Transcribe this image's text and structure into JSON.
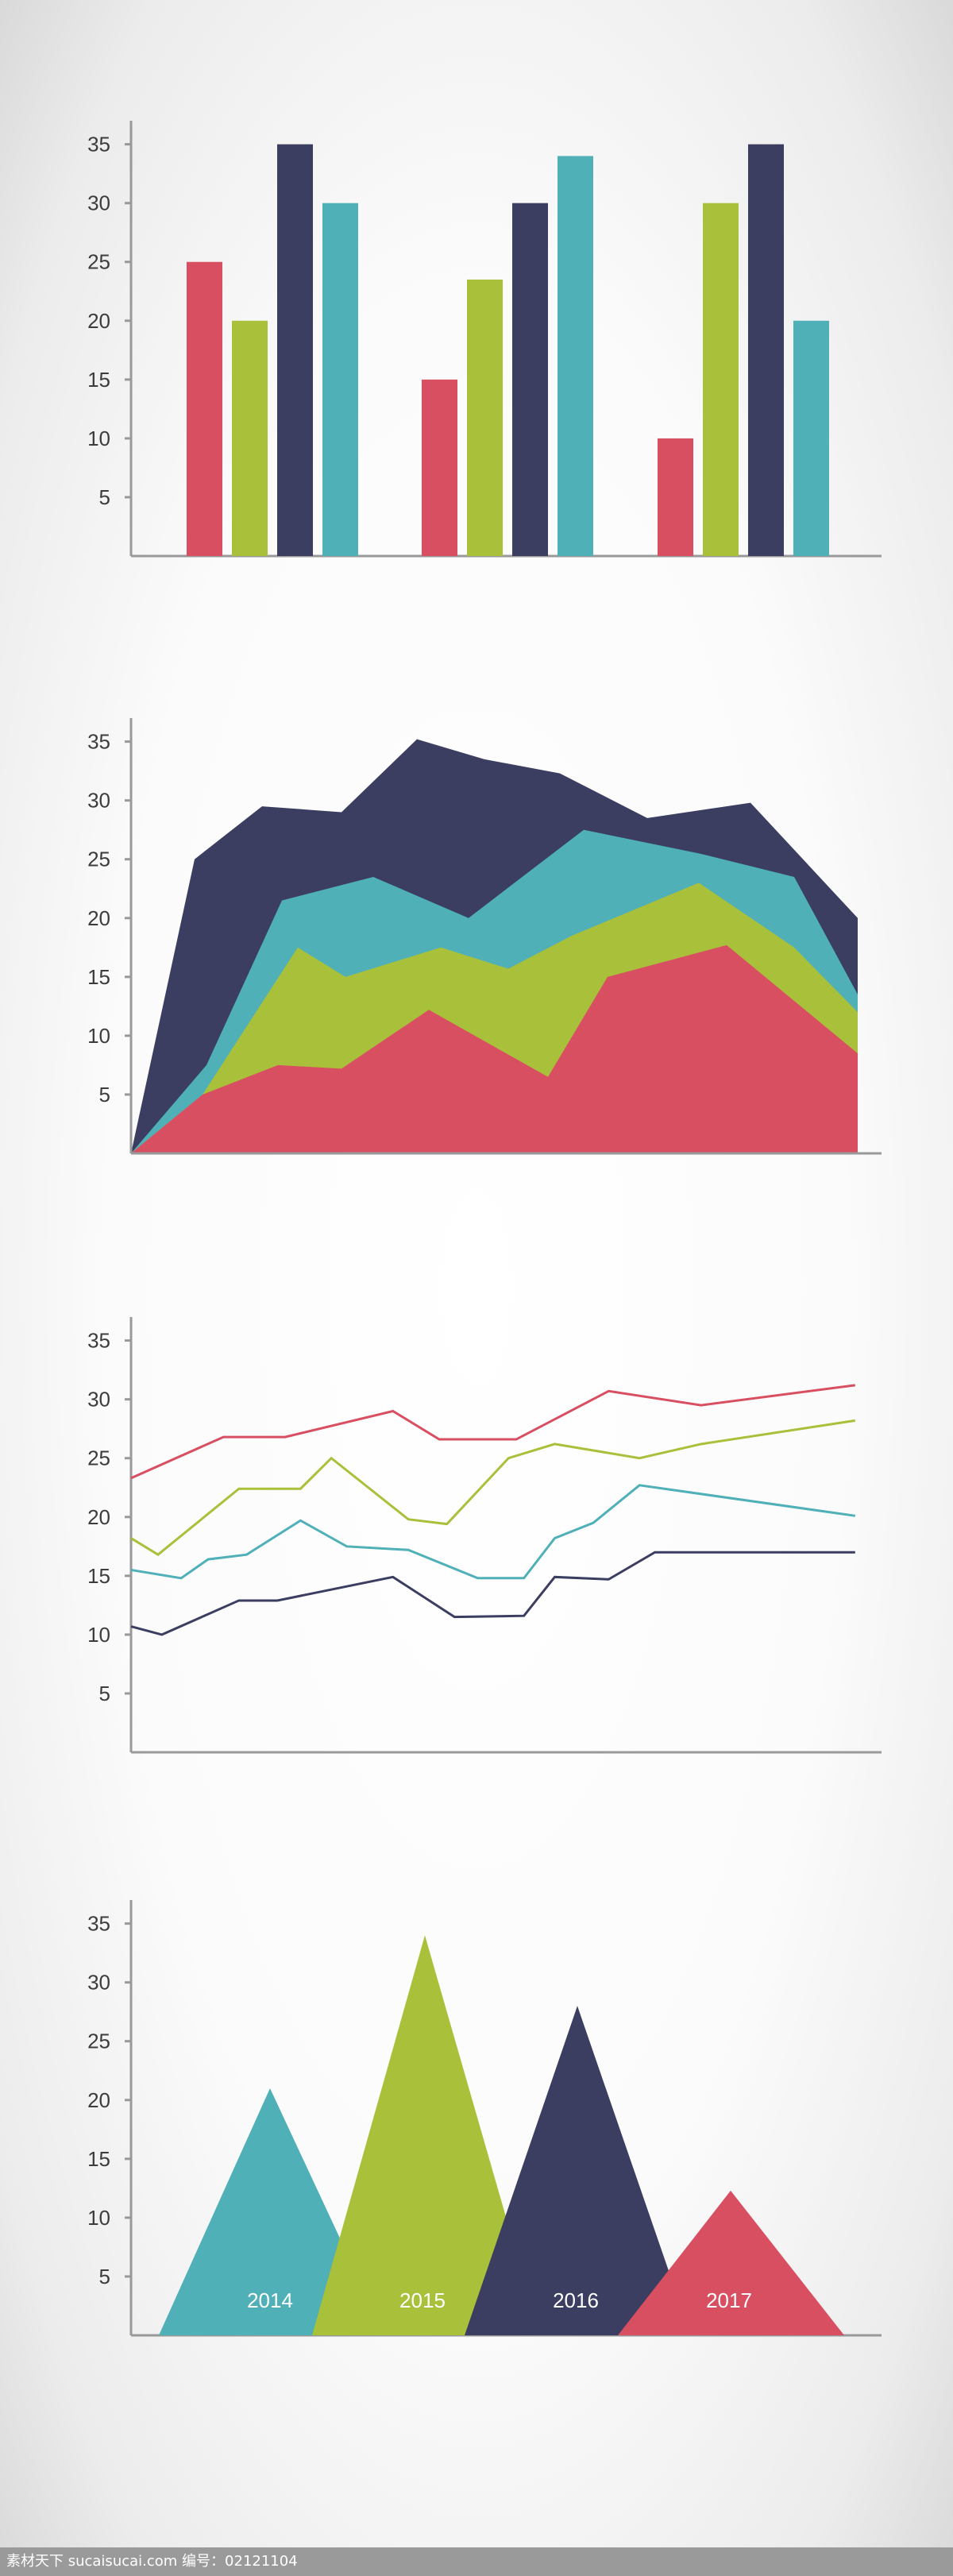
{
  "colors": {
    "red": "#d94f62",
    "green": "#a9c03a",
    "navy": "#3b3e60",
    "teal": "#4fb0b8",
    "axis": "#999999"
  },
  "chart_data": [
    {
      "type": "bar",
      "yticks": [
        5,
        10,
        15,
        20,
        25,
        30,
        35
      ],
      "ylim": [
        0,
        37
      ],
      "groups": 3,
      "series": [
        {
          "color": "red",
          "values": [
            25,
            15,
            10
          ]
        },
        {
          "color": "green",
          "values": [
            20,
            23.5,
            30
          ]
        },
        {
          "color": "navy",
          "values": [
            35,
            30,
            35
          ]
        },
        {
          "color": "teal",
          "values": [
            30,
            34,
            20
          ]
        }
      ],
      "xlabel": "",
      "ylabel": "",
      "title": ""
    },
    {
      "type": "area",
      "yticks": [
        5,
        10,
        15,
        20,
        25,
        30,
        35
      ],
      "ylim": [
        0,
        37
      ],
      "x": [
        0,
        1,
        2,
        3,
        4,
        5,
        6,
        7,
        8,
        9,
        10
      ],
      "series": [
        {
          "color": "navy",
          "values": [
            0,
            25,
            29.5,
            29,
            35.2,
            33.5,
            32.3,
            28.5,
            29.8,
            20,
            null
          ],
          "mode": "top"
        },
        {
          "color": "teal",
          "values": [
            0,
            7.5,
            21.5,
            23.5,
            20,
            27.5,
            25.5,
            23.5,
            13.5,
            null,
            null
          ],
          "mode": "top"
        },
        {
          "color": "green",
          "values": [
            0,
            5,
            17.5,
            15,
            17.5,
            15.7,
            18.5,
            23,
            12,
            null,
            null
          ],
          "mode": "top"
        },
        {
          "color": "red",
          "values": [
            0,
            5,
            7.5,
            7.2,
            12.2,
            6.5,
            15,
            17.7,
            8.5,
            null,
            null
          ],
          "mode": "top"
        }
      ],
      "xlabel": "",
      "ylabel": "",
      "title": ""
    },
    {
      "type": "line",
      "yticks": [
        5,
        10,
        15,
        20,
        25,
        30,
        35
      ],
      "ylim": [
        0,
        37
      ],
      "series": [
        {
          "color": "red",
          "x": [
            0,
            1.2,
            2,
            3.4,
            4,
            5,
            6.2,
            7.4,
            9.4
          ],
          "values": [
            23.3,
            26.8,
            26.8,
            29,
            26.6,
            26.6,
            30.7,
            29.5,
            31.2
          ]
        },
        {
          "color": "green",
          "x": [
            0,
            0.35,
            1.4,
            2.2,
            2.6,
            3.6,
            4.1,
            4.9,
            5.5,
            6.6,
            7.4,
            9.4
          ],
          "values": [
            18.2,
            16.8,
            22.4,
            22.4,
            25,
            19.8,
            19.4,
            25,
            26.2,
            25,
            26.2,
            28.2
          ]
        },
        {
          "color": "teal",
          "x": [
            0,
            0.65,
            1,
            1.5,
            2.2,
            2.8,
            3.6,
            4.5,
            5.1,
            5.5,
            6,
            6.6,
            9.4
          ],
          "values": [
            15.5,
            14.8,
            16.4,
            16.8,
            19.7,
            17.5,
            17.2,
            14.8,
            14.8,
            18.2,
            19.5,
            22.7,
            20.1
          ]
        },
        {
          "color": "navy",
          "x": [
            0,
            0.4,
            1.4,
            1.9,
            3.4,
            4.2,
            5.1,
            5.5,
            6.2,
            6.8,
            7.4,
            9.4
          ],
          "values": [
            10.7,
            10,
            12.9,
            12.9,
            14.9,
            11.5,
            11.6,
            14.9,
            14.7,
            17,
            17,
            17
          ]
        }
      ],
      "xlabel": "",
      "ylabel": "",
      "title": ""
    },
    {
      "type": "triangle",
      "yticks": [
        5,
        10,
        15,
        20,
        25,
        30,
        35
      ],
      "ylim": [
        0,
        37
      ],
      "categories": [
        "2014",
        "2015",
        "2016",
        "2017"
      ],
      "series": [
        {
          "color": "teal",
          "value": 21
        },
        {
          "color": "green",
          "value": 34
        },
        {
          "color": "navy",
          "value": 28
        },
        {
          "color": "red",
          "value": 12.3
        }
      ],
      "xlabel": "",
      "ylabel": "",
      "title": ""
    }
  ],
  "watermark": "素材天下 sucaisucai.com 编号：02121104"
}
